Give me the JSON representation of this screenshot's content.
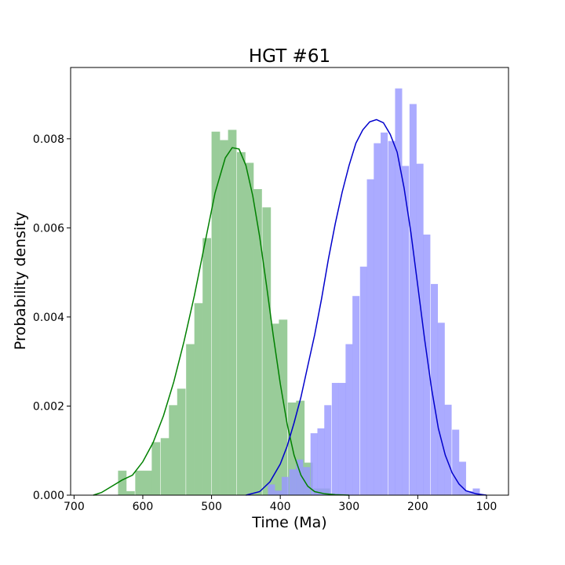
{
  "chart_data": {
    "type": "histogram",
    "title": "HGT #61",
    "xlabel": "Time (Ma)",
    "ylabel": "Probability density",
    "x_reversed": true,
    "xlim": [
      705,
      68
    ],
    "ylim": [
      0,
      0.0096
    ],
    "xticks": [
      700,
      600,
      500,
      400,
      300,
      200,
      100
    ],
    "xtick_labels": [
      "700",
      "600",
      "500",
      "400",
      "300",
      "200",
      "100"
    ],
    "yticks": [
      0,
      0.002,
      0.004,
      0.006,
      0.008
    ],
    "ytick_labels": [
      "0.000",
      "0.002",
      "0.004",
      "0.006",
      "0.008"
    ],
    "grid": false,
    "series": [
      {
        "color": "#008000",
        "bar_color": "#99cc99",
        "bin_width": 12.33,
        "bins": [
          [
            636,
            0.00055
          ],
          [
            624,
            9e-05
          ],
          [
            611,
            0.00055
          ],
          [
            599,
            0.00055
          ],
          [
            587,
            0.00119
          ],
          [
            574,
            0.00128
          ],
          [
            562,
            0.00202
          ],
          [
            550,
            0.00239
          ],
          [
            537,
            0.00339
          ],
          [
            525,
            0.00431
          ],
          [
            513,
            0.00577
          ],
          [
            500,
            0.00816
          ],
          [
            488,
            0.00797
          ],
          [
            476,
            0.0082
          ],
          [
            463,
            0.0077
          ],
          [
            451,
            0.00746
          ],
          [
            439,
            0.00687
          ],
          [
            426,
            0.00646
          ],
          [
            414,
            0.00385
          ],
          [
            402,
            0.00394
          ],
          [
            389,
            0.00208
          ],
          [
            377,
            0.00212
          ],
          [
            365,
            0.00073
          ],
          [
            352,
            0.00015
          ],
          [
            340,
            0.00015
          ]
        ],
        "kde": [
          [
            672,
            0.0
          ],
          [
            660,
            6e-05
          ],
          [
            645,
            0.0002
          ],
          [
            630,
            0.00034
          ],
          [
            615,
            0.00045
          ],
          [
            600,
            0.00075
          ],
          [
            585,
            0.00118
          ],
          [
            570,
            0.00178
          ],
          [
            555,
            0.00254
          ],
          [
            540,
            0.00345
          ],
          [
            525,
            0.00448
          ],
          [
            510,
            0.00563
          ],
          [
            495,
            0.00678
          ],
          [
            480,
            0.00757
          ],
          [
            470,
            0.0078
          ],
          [
            460,
            0.00777
          ],
          [
            450,
            0.0074
          ],
          [
            440,
            0.00672
          ],
          [
            430,
            0.0058
          ],
          [
            420,
            0.0047
          ],
          [
            410,
            0.00356
          ],
          [
            400,
            0.0025
          ],
          [
            390,
            0.0016
          ],
          [
            380,
            0.0009
          ],
          [
            370,
            0.00045
          ],
          [
            360,
            0.0002
          ],
          [
            350,
            8e-05
          ],
          [
            335,
            3e-05
          ],
          [
            320,
            1e-05
          ],
          [
            300,
            0.0
          ]
        ]
      },
      {
        "color": "#0000cc",
        "bar_color": "#9999ff",
        "bin_width": 10.3,
        "bins": [
          [
            418,
            0.00024
          ],
          [
            408,
            0.0001
          ],
          [
            398,
            0.00041
          ],
          [
            387,
            0.00058
          ],
          [
            377,
            0.0008
          ],
          [
            367,
            0.00063
          ],
          [
            356,
            0.00139
          ],
          [
            346,
            0.0015
          ],
          [
            336,
            0.00202
          ],
          [
            325,
            0.00252
          ],
          [
            315,
            0.00252
          ],
          [
            305,
            0.00339
          ],
          [
            295,
            0.00447
          ],
          [
            284,
            0.00513
          ],
          [
            274,
            0.00709
          ],
          [
            264,
            0.0079
          ],
          [
            254,
            0.00814
          ],
          [
            243,
            0.00795
          ],
          [
            233,
            0.00913
          ],
          [
            223,
            0.00739
          ],
          [
            212,
            0.00878
          ],
          [
            202,
            0.00744
          ],
          [
            192,
            0.00585
          ],
          [
            181,
            0.00474
          ],
          [
            171,
            0.00387
          ],
          [
            161,
            0.00203
          ],
          [
            150,
            0.00147
          ],
          [
            140,
            0.00075
          ],
          [
            130,
            9e-05
          ],
          [
            120,
            0.00015
          ]
        ],
        "kde": [
          [
            450,
            0.0
          ],
          [
            430,
            8e-05
          ],
          [
            415,
            0.0003
          ],
          [
            400,
            0.0007
          ],
          [
            390,
            0.0011
          ],
          [
            380,
            0.00162
          ],
          [
            370,
            0.0022
          ],
          [
            360,
            0.0029
          ],
          [
            350,
            0.0036
          ],
          [
            340,
            0.0044
          ],
          [
            330,
            0.0053
          ],
          [
            320,
            0.0061
          ],
          [
            310,
            0.0068
          ],
          [
            300,
            0.0074
          ],
          [
            290,
            0.0079
          ],
          [
            280,
            0.0082
          ],
          [
            270,
            0.00838
          ],
          [
            260,
            0.00843
          ],
          [
            250,
            0.00836
          ],
          [
            240,
            0.0081
          ],
          [
            230,
            0.0077
          ],
          [
            220,
            0.0069
          ],
          [
            210,
            0.0059
          ],
          [
            200,
            0.0047
          ],
          [
            190,
            0.0035
          ],
          [
            180,
            0.0024
          ],
          [
            170,
            0.0015
          ],
          [
            160,
            0.0009
          ],
          [
            150,
            0.0005
          ],
          [
            140,
            0.00025
          ],
          [
            130,
            0.0001
          ],
          [
            115,
            3e-05
          ],
          [
            100,
            0.0
          ]
        ]
      }
    ]
  }
}
